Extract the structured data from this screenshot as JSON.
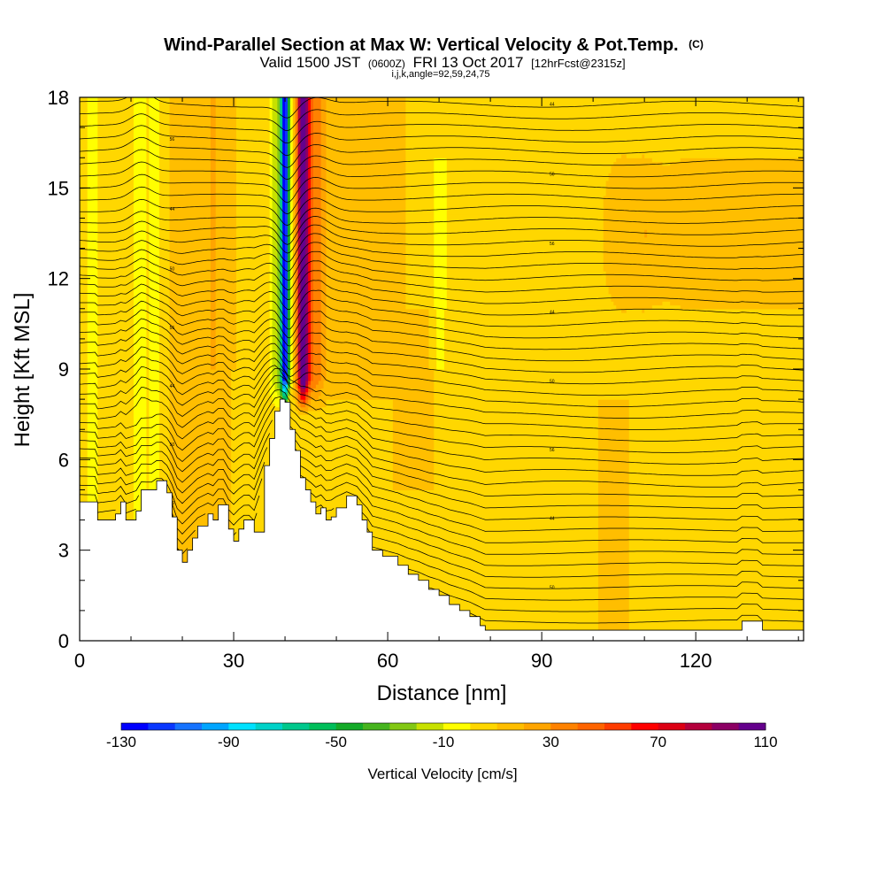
{
  "chart_data": {
    "type": "heatmap",
    "title": "Wind-Parallel Section at Max W: Vertical Velocity & Pot.Temp.",
    "title_mark": "(C)",
    "subtitle_parts": [
      "Valid 1500 JST",
      "(0600Z)",
      "FRI 13 Oct 2017",
      "[12hrFcst@2315z]"
    ],
    "subtitle2": "i,j,k,angle=92,59,24,75",
    "xlabel": "Distance [nm]",
    "ylabel": "Height [Kft MSL]",
    "xlim": [
      0,
      141
    ],
    "ylim": [
      0,
      18
    ],
    "xticks": [
      0,
      30,
      60,
      90,
      120
    ],
    "yticks": [
      0,
      3,
      6,
      9,
      12,
      15,
      18
    ],
    "colorbar": {
      "label": "Vertical Velocity [cm/s]",
      "min": -130,
      "max": 110,
      "step": 10,
      "tick_labels": [
        -130,
        -90,
        -50,
        -10,
        30,
        70,
        110
      ],
      "colors": [
        "#0000ff",
        "#0a37ff",
        "#1673ff",
        "#00a5ff",
        "#00e1ff",
        "#00d2c8",
        "#00c88c",
        "#00be5a",
        "#14aa28",
        "#46b41e",
        "#82c814",
        "#c8e100",
        "#ffff00",
        "#ffd700",
        "#ffbe00",
        "#ffa500",
        "#ff8200",
        "#ff6400",
        "#ff3c00",
        "#ff0000",
        "#dc0014",
        "#b4003c",
        "#8c0064",
        "#64008c"
      ]
    },
    "terrain_kft": [
      [
        0,
        4.6
      ],
      [
        3,
        4.6
      ],
      [
        3.5,
        4.0
      ],
      [
        7,
        4.2
      ],
      [
        8,
        4.6
      ],
      [
        9,
        4.0
      ],
      [
        11,
        4.3
      ],
      [
        12,
        5.0
      ],
      [
        14,
        5.0
      ],
      [
        15,
        5.3
      ],
      [
        16,
        5.3
      ],
      [
        17,
        4.9
      ],
      [
        18,
        4.1
      ],
      [
        19,
        3.0
      ],
      [
        20,
        2.6
      ],
      [
        21,
        3.0
      ],
      [
        22,
        3.4
      ],
      [
        23,
        3.8
      ],
      [
        25,
        4.2
      ],
      [
        26,
        4.0
      ],
      [
        27,
        4.5
      ],
      [
        28,
        4.5
      ],
      [
        29,
        3.7
      ],
      [
        30,
        3.3
      ],
      [
        31,
        3.7
      ],
      [
        32,
        4.0
      ],
      [
        33,
        4.0
      ],
      [
        34,
        3.6
      ],
      [
        36,
        5.8
      ],
      [
        37,
        6.7
      ],
      [
        38,
        7.6
      ],
      [
        39,
        8.0
      ],
      [
        40,
        7.9
      ],
      [
        41,
        7.0
      ],
      [
        42,
        6.3
      ],
      [
        43,
        5.4
      ],
      [
        44,
        5.0
      ],
      [
        45,
        4.6
      ],
      [
        46,
        4.2
      ],
      [
        47,
        4.4
      ],
      [
        48,
        4.0
      ],
      [
        49,
        4.1
      ],
      [
        50,
        4.4
      ],
      [
        52,
        4.8
      ],
      [
        54,
        4.5
      ],
      [
        55,
        4.0
      ],
      [
        56,
        3.6
      ],
      [
        57,
        3.0
      ],
      [
        59,
        2.8
      ],
      [
        62,
        2.5
      ],
      [
        64,
        2.2
      ],
      [
        66,
        2.0
      ],
      [
        68,
        1.7
      ],
      [
        70,
        1.5
      ],
      [
        72,
        1.2
      ],
      [
        74,
        1.0
      ],
      [
        76,
        0.8
      ],
      [
        78,
        0.5
      ],
      [
        79,
        0.35
      ],
      [
        80,
        0.35
      ],
      [
        128,
        0.35
      ],
      [
        129,
        0.65
      ],
      [
        132,
        0.65
      ],
      [
        133,
        0.35
      ],
      [
        141,
        0.35
      ]
    ],
    "updraft": {
      "x_center": 43.5,
      "top_kft": 18,
      "base_kft": 7.8,
      "peak_cm_s": 110
    },
    "downdraft": {
      "x_center": 40.0,
      "top_kft": 18,
      "base_kft": 7.8,
      "min_cm_s": -130
    },
    "theta_contour_labels_K": [
      "44",
      "46",
      "48",
      "50",
      "52",
      "54",
      "56",
      "58",
      "60"
    ]
  }
}
